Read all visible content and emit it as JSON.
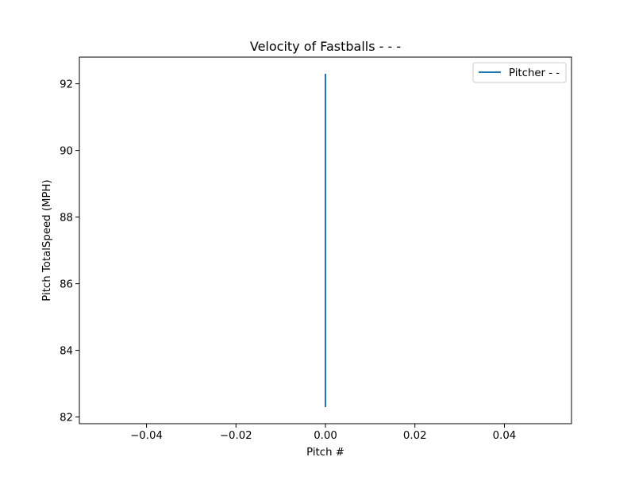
{
  "chart_data": {
    "type": "line",
    "title": "Velocity of Fastballs - - -",
    "xlabel": "Pitch #",
    "ylabel": "Pitch TotalSpeed (MPH)",
    "xlim": [
      -0.055,
      0.055
    ],
    "ylim": [
      81.8,
      92.8
    ],
    "x_ticks": [
      -0.04,
      -0.02,
      0.0,
      0.02,
      0.04
    ],
    "x_tick_labels": [
      "−0.04",
      "−0.02",
      "0.00",
      "0.02",
      "0.04"
    ],
    "y_ticks": [
      82,
      84,
      86,
      88,
      90,
      92
    ],
    "y_tick_labels": [
      "82",
      "84",
      "86",
      "88",
      "90",
      "92"
    ],
    "grid": false,
    "legend_position": "top-right",
    "series": [
      {
        "name": "Pitcher - -",
        "color": "#1f77b4",
        "points": [
          {
            "x": 0,
            "y": 92.3
          },
          {
            "x": 0,
            "y": 82.3
          }
        ]
      }
    ]
  }
}
